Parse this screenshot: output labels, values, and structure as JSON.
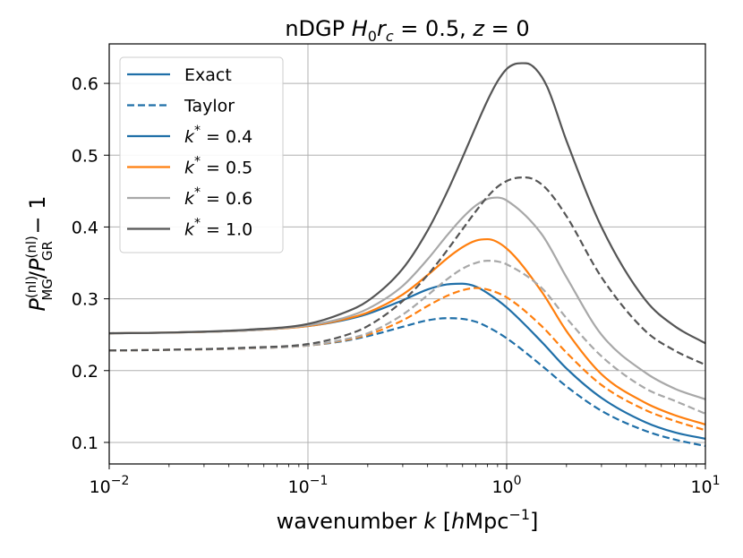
{
  "chart_data": {
    "type": "line",
    "title_parts": {
      "prefix": "nDGP ",
      "math": "H",
      "sub0": "0",
      "r": "r",
      "subc": "c",
      "rest": " = 0.5, ",
      "z": "z",
      "zrest": " = 0"
    },
    "xlabel_parts": {
      "text": "wavenumber ",
      "k": "k",
      "open": " [",
      "h": "h",
      "unit": "Mpc",
      "exp": "−1",
      "close": "]"
    },
    "ylabel_parts": {
      "P1": "P",
      "sup1": "(nl)",
      "sub1": "MG",
      "slash": "/",
      "P2": "P",
      "sup2": "(nl)",
      "sub2": "GR",
      "rest": " − 1"
    },
    "xscale": "log",
    "xlim": [
      0.01,
      10
    ],
    "ylim": [
      0.07,
      0.655
    ],
    "x_ticks": [
      {
        "value": 0.01,
        "base": "10",
        "exp": "−2"
      },
      {
        "value": 0.1,
        "base": "10",
        "exp": "−1"
      },
      {
        "value": 1,
        "base": "10",
        "exp": "0"
      },
      {
        "value": 10,
        "base": "10",
        "exp": "1"
      }
    ],
    "y_ticks": [
      {
        "value": 0.1,
        "label": "0.1"
      },
      {
        "value": 0.2,
        "label": "0.2"
      },
      {
        "value": 0.3,
        "label": "0.3"
      },
      {
        "value": 0.4,
        "label": "0.4"
      },
      {
        "value": 0.5,
        "label": "0.5"
      },
      {
        "value": 0.6,
        "label": "0.6"
      }
    ],
    "grid": true,
    "legend_position": "top-left",
    "legend": [
      {
        "label": "Exact",
        "color": "#1f6fa8",
        "dash": "solid",
        "math": false
      },
      {
        "label": "Taylor",
        "color": "#1f6fa8",
        "dash": "dashed",
        "math": false
      },
      {
        "label": "0.4",
        "color": "#1f6fa8",
        "dash": "solid",
        "math": true
      },
      {
        "label": "0.5",
        "color": "#ff7f0e",
        "dash": "solid",
        "math": true
      },
      {
        "label": "0.6",
        "color": "#a8a8a8",
        "dash": "solid",
        "math": true
      },
      {
        "label": "1.0",
        "color": "#555555",
        "dash": "solid",
        "math": true
      }
    ],
    "legend_math_prefix": {
      "k": "k",
      "star": "*",
      "eq": " = "
    },
    "series": [
      {
        "name": "k*=0.4 Exact",
        "color": "#1f6fa8",
        "dash": "solid",
        "x": [
          0.01,
          0.02,
          0.05,
          0.1,
          0.15,
          0.2,
          0.3,
          0.4,
          0.5,
          0.6,
          0.7,
          0.8,
          1.0,
          1.5,
          2.0,
          3.0,
          5.0,
          7.0,
          10.0
        ],
        "y": [
          0.252,
          0.253,
          0.256,
          0.262,
          0.27,
          0.279,
          0.298,
          0.313,
          0.32,
          0.321,
          0.317,
          0.308,
          0.288,
          0.24,
          0.203,
          0.162,
          0.128,
          0.114,
          0.105
        ]
      },
      {
        "name": "k*=0.4 Taylor",
        "color": "#1f6fa8",
        "dash": "dashed",
        "x": [
          0.01,
          0.02,
          0.05,
          0.1,
          0.15,
          0.2,
          0.3,
          0.4,
          0.5,
          0.6,
          0.7,
          0.8,
          1.0,
          1.5,
          2.0,
          3.0,
          5.0,
          7.0,
          10.0
        ],
        "y": [
          0.228,
          0.229,
          0.231,
          0.235,
          0.241,
          0.248,
          0.261,
          0.27,
          0.273,
          0.272,
          0.268,
          0.261,
          0.245,
          0.207,
          0.178,
          0.144,
          0.116,
          0.104,
          0.095
        ]
      },
      {
        "name": "k*=0.5 Exact",
        "color": "#ff7f0e",
        "dash": "solid",
        "x": [
          0.01,
          0.02,
          0.05,
          0.1,
          0.15,
          0.2,
          0.3,
          0.4,
          0.5,
          0.6,
          0.7,
          0.8,
          1.0,
          1.5,
          2.0,
          3.0,
          5.0,
          7.0,
          10.0
        ],
        "y": [
          0.252,
          0.253,
          0.256,
          0.262,
          0.271,
          0.281,
          0.306,
          0.333,
          0.356,
          0.372,
          0.381,
          0.383,
          0.37,
          0.31,
          0.255,
          0.195,
          0.155,
          0.138,
          0.125
        ]
      },
      {
        "name": "k*=0.5 Taylor",
        "color": "#ff7f0e",
        "dash": "dashed",
        "x": [
          0.01,
          0.02,
          0.05,
          0.1,
          0.15,
          0.2,
          0.3,
          0.4,
          0.5,
          0.6,
          0.7,
          0.8,
          1.0,
          1.5,
          2.0,
          3.0,
          5.0,
          7.0,
          10.0
        ],
        "y": [
          0.228,
          0.229,
          0.231,
          0.235,
          0.242,
          0.25,
          0.27,
          0.29,
          0.304,
          0.312,
          0.315,
          0.313,
          0.302,
          0.262,
          0.225,
          0.18,
          0.145,
          0.13,
          0.117
        ]
      },
      {
        "name": "k*=0.6 Exact",
        "color": "#a8a8a8",
        "dash": "solid",
        "x": [
          0.01,
          0.02,
          0.05,
          0.1,
          0.15,
          0.2,
          0.3,
          0.4,
          0.5,
          0.6,
          0.7,
          0.8,
          0.9,
          1.0,
          1.5,
          2.0,
          3.0,
          5.0,
          7.0,
          10.0
        ],
        "y": [
          0.252,
          0.253,
          0.256,
          0.263,
          0.273,
          0.286,
          0.318,
          0.355,
          0.388,
          0.413,
          0.43,
          0.439,
          0.441,
          0.437,
          0.39,
          0.33,
          0.25,
          0.197,
          0.175,
          0.16
        ]
      },
      {
        "name": "k*=0.6 Taylor",
        "color": "#a8a8a8",
        "dash": "dashed",
        "x": [
          0.01,
          0.02,
          0.05,
          0.1,
          0.15,
          0.2,
          0.3,
          0.4,
          0.5,
          0.6,
          0.7,
          0.8,
          0.9,
          1.0,
          1.5,
          2.0,
          3.0,
          5.0,
          7.0,
          10.0
        ],
        "y": [
          0.228,
          0.229,
          0.231,
          0.235,
          0.243,
          0.252,
          0.278,
          0.305,
          0.327,
          0.342,
          0.35,
          0.353,
          0.352,
          0.348,
          0.315,
          0.273,
          0.22,
          0.175,
          0.158,
          0.14
        ]
      },
      {
        "name": "k*=1.0 Exact",
        "color": "#555555",
        "dash": "solid",
        "x": [
          0.01,
          0.02,
          0.05,
          0.1,
          0.15,
          0.2,
          0.3,
          0.4,
          0.5,
          0.6,
          0.7,
          0.8,
          0.9,
          1.0,
          1.1,
          1.25,
          1.4,
          1.6,
          2.0,
          3.0,
          5.0,
          7.0,
          10.0
        ],
        "y": [
          0.252,
          0.253,
          0.257,
          0.265,
          0.28,
          0.297,
          0.342,
          0.395,
          0.448,
          0.497,
          0.54,
          0.576,
          0.603,
          0.62,
          0.627,
          0.628,
          0.62,
          0.595,
          0.52,
          0.4,
          0.298,
          0.262,
          0.238
        ]
      },
      {
        "name": "k*=1.0 Taylor",
        "color": "#555555",
        "dash": "dashed",
        "x": [
          0.01,
          0.02,
          0.05,
          0.1,
          0.15,
          0.2,
          0.3,
          0.4,
          0.5,
          0.6,
          0.7,
          0.8,
          0.9,
          1.0,
          1.1,
          1.25,
          1.4,
          1.6,
          2.0,
          3.0,
          5.0,
          7.0,
          10.0
        ],
        "y": [
          0.228,
          0.229,
          0.232,
          0.237,
          0.248,
          0.262,
          0.297,
          0.333,
          0.367,
          0.397,
          0.422,
          0.442,
          0.456,
          0.464,
          0.468,
          0.469,
          0.465,
          0.452,
          0.415,
          0.33,
          0.255,
          0.228,
          0.208
        ]
      }
    ]
  }
}
